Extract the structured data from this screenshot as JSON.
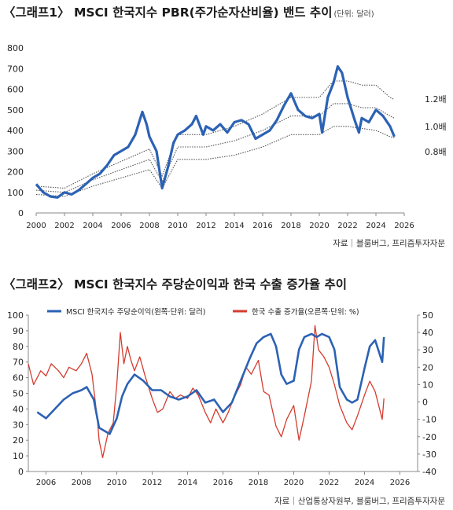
{
  "chart1": {
    "title": "〈그래프1〉 MSCI 한국지수 PBR(주가순자산비율) 밴드 추이",
    "unit": "(단위: 달러)",
    "source": "자료｜블룸버그, 프리즘투자자문"
  },
  "chart2": {
    "title": "〈그래프2〉 MSCI 한국지수 주당순이익과 한국 수출 증가율 추이",
    "source": "자료｜산업통상자원부, 블룸버그, 프리즘투자자문"
  },
  "colors": {
    "blue": "#2b62b4",
    "red": "#d43c2f",
    "dotted": "#555555",
    "axis": "#888888"
  },
  "chart_data": [
    {
      "type": "line",
      "title": "〈그래프1〉 MSCI 한국지수 PBR(주가순자산비율) 밴드 추이",
      "xlabel": "",
      "ylabel": "",
      "xlim": [
        2000,
        2026
      ],
      "ylim": [
        0,
        800
      ],
      "x_ticks": [
        "2000",
        "2002",
        "2004",
        "2006",
        "2008",
        "2010",
        "2012",
        "2014",
        "2016",
        "2018",
        "2020",
        "2022",
        "2024",
        "2026"
      ],
      "y_ticks": [
        "0",
        "100",
        "200",
        "300",
        "400",
        "500",
        "600",
        "700",
        "800"
      ],
      "grid": false,
      "series": [
        {
          "name": "",
          "style": "solid",
          "color": "#2b62b4",
          "x": [
            2000,
            2000.5,
            2001,
            2001.5,
            2002,
            2002.5,
            2003,
            2003.5,
            2004,
            2004.5,
            2005,
            2005.5,
            2006,
            2006.5,
            2007,
            2007.5,
            2007.8,
            2008,
            2008.5,
            2008.9,
            2009.3,
            2009.7,
            2010,
            2010.5,
            2011,
            2011.3,
            2011.8,
            2012,
            2012.5,
            2013,
            2013.5,
            2014,
            2014.5,
            2015,
            2015.5,
            2016,
            2016.5,
            2017,
            2017.5,
            2018,
            2018.5,
            2019,
            2019.5,
            2020,
            2020.2,
            2020.6,
            2021,
            2021.3,
            2021.6,
            2022,
            2022.5,
            2022.8,
            2023,
            2023.5,
            2024,
            2024.5,
            2025,
            2025.3
          ],
          "y": [
            140,
            100,
            80,
            75,
            100,
            90,
            110,
            140,
            170,
            190,
            230,
            280,
            300,
            320,
            380,
            490,
            430,
            370,
            300,
            120,
            220,
            340,
            380,
            400,
            430,
            470,
            380,
            420,
            400,
            430,
            390,
            440,
            450,
            430,
            360,
            380,
            400,
            450,
            520,
            580,
            500,
            470,
            460,
            480,
            390,
            560,
            630,
            710,
            680,
            560,
            450,
            390,
            460,
            440,
            500,
            470,
            420,
            370
          ]
        },
        {
          "name": "1.2배",
          "style": "dotted",
          "color": "#555555",
          "x": [
            2000,
            2002,
            2004,
            2006,
            2008,
            2008.9,
            2010,
            2012,
            2014,
            2016,
            2018,
            2020,
            2021,
            2022,
            2023,
            2024,
            2025,
            2025.3
          ],
          "y": [
            130,
            120,
            190,
            250,
            310,
            180,
            380,
            380,
            420,
            480,
            560,
            560,
            640,
            640,
            620,
            620,
            560,
            550
          ]
        },
        {
          "name": "1.0배",
          "style": "dotted",
          "color": "#555555",
          "x": [
            2000,
            2002,
            2004,
            2006,
            2008,
            2008.9,
            2010,
            2012,
            2014,
            2016,
            2018,
            2020,
            2021,
            2022,
            2023,
            2024,
            2025,
            2025.3
          ],
          "y": [
            110,
            100,
            160,
            210,
            260,
            150,
            320,
            320,
            350,
            400,
            470,
            470,
            530,
            530,
            510,
            510,
            470,
            460
          ]
        },
        {
          "name": "0.8배",
          "style": "dotted",
          "color": "#555555",
          "x": [
            2000,
            2002,
            2004,
            2006,
            2008,
            2008.9,
            2010,
            2012,
            2014,
            2016,
            2018,
            2020,
            2021,
            2022,
            2023,
            2024,
            2025,
            2025.3
          ],
          "y": [
            90,
            80,
            130,
            170,
            210,
            120,
            260,
            260,
            280,
            320,
            380,
            380,
            420,
            420,
            410,
            400,
            370,
            365
          ]
        }
      ]
    },
    {
      "type": "line",
      "title": "〈그래프2〉 MSCI 한국지수 주당순이익과 한국 수출 증가율 추이",
      "xlabel": "",
      "ylabel": "",
      "xlim": [
        2005,
        2027
      ],
      "ylim": [
        0,
        100
      ],
      "y2lim": [
        -40,
        50
      ],
      "x_ticks": [
        "2006",
        "2008",
        "2010",
        "2012",
        "2014",
        "2016",
        "2018",
        "2020",
        "2022",
        "2024",
        "2026"
      ],
      "y_ticks": [
        "0",
        "10",
        "20",
        "30",
        "40",
        "50",
        "60",
        "70",
        "80",
        "90",
        "100"
      ],
      "y2_ticks": [
        "-40",
        "-30",
        "-20",
        "-10",
        "0",
        "10",
        "20",
        "30",
        "40",
        "50"
      ],
      "legend_position": "top",
      "grid": false,
      "series": [
        {
          "name": "MSCI 한국지수 주당순이익(왼쪽·단위: 달러)",
          "axis": "left",
          "color": "#2b62b4",
          "x": [
            2005.5,
            2006,
            2006.5,
            2007,
            2007.5,
            2008,
            2008.3,
            2008.7,
            2009,
            2009.3,
            2009.6,
            2010,
            2010.3,
            2010.6,
            2011,
            2011.5,
            2012,
            2012.5,
            2013,
            2013.5,
            2014,
            2014.5,
            2015,
            2015.5,
            2016,
            2016.5,
            2017,
            2017.5,
            2017.9,
            2018.3,
            2018.7,
            2019,
            2019.3,
            2019.6,
            2020,
            2020.3,
            2020.6,
            2021,
            2021.3,
            2021.6,
            2022,
            2022.3,
            2022.6,
            2023,
            2023.3,
            2023.6,
            2024,
            2024.3,
            2024.6,
            2025,
            2025.1
          ],
          "y": [
            38,
            34,
            40,
            46,
            50,
            52,
            54,
            46,
            28,
            26,
            24,
            34,
            48,
            56,
            62,
            58,
            52,
            52,
            48,
            46,
            48,
            52,
            44,
            46,
            38,
            44,
            58,
            72,
            82,
            86,
            88,
            80,
            62,
            56,
            58,
            78,
            86,
            88,
            86,
            88,
            86,
            78,
            54,
            46,
            44,
            46,
            66,
            80,
            84,
            70,
            86
          ]
        },
        {
          "name": "한국 수출 증가율(오른쪽·단위: %)",
          "axis": "right",
          "color": "#d43c2f",
          "x": [
            2005,
            2005.3,
            2005.7,
            2006,
            2006.3,
            2006.7,
            2007,
            2007.3,
            2007.7,
            2008,
            2008.3,
            2008.6,
            2008.9,
            2009,
            2009.2,
            2009.5,
            2009.8,
            2010,
            2010.2,
            2010.4,
            2010.6,
            2010.8,
            2011,
            2011.3,
            2011.6,
            2012,
            2012.3,
            2012.6,
            2013,
            2013.3,
            2013.6,
            2014,
            2014.3,
            2014.6,
            2015,
            2015.3,
            2015.6,
            2016,
            2016.3,
            2016.6,
            2017,
            2017.3,
            2017.6,
            2018,
            2018.3,
            2018.6,
            2019,
            2019.3,
            2019.6,
            2020,
            2020.3,
            2020.6,
            2021,
            2021.2,
            2021.4,
            2021.7,
            2022,
            2022.3,
            2022.6,
            2023,
            2023.3,
            2023.6,
            2024,
            2024.3,
            2024.6,
            2025,
            2025.1
          ],
          "y": [
            22,
            10,
            18,
            15,
            22,
            18,
            14,
            20,
            18,
            22,
            28,
            16,
            -10,
            -22,
            -32,
            -18,
            -12,
            10,
            40,
            22,
            32,
            24,
            18,
            26,
            15,
            2,
            -6,
            -4,
            6,
            2,
            4,
            2,
            8,
            4,
            -6,
            -12,
            -4,
            -12,
            -6,
            2,
            10,
            20,
            16,
            24,
            6,
            4,
            -14,
            -20,
            -10,
            -2,
            -22,
            -8,
            12,
            44,
            30,
            26,
            20,
            10,
            -2,
            -12,
            -16,
            -8,
            4,
            12,
            6,
            -10,
            2
          ]
        }
      ]
    }
  ]
}
